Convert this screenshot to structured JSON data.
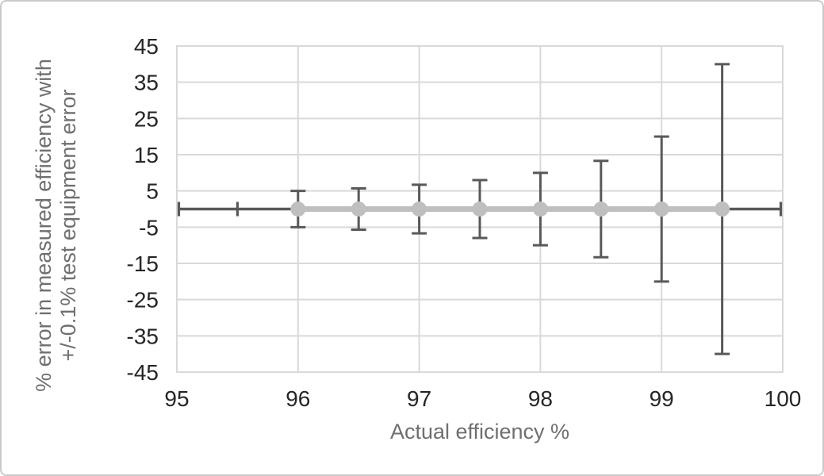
{
  "figure": {
    "background": "#ffffff",
    "border_color": "#c9c9c9"
  },
  "chart_data": {
    "type": "scatter",
    "title": "",
    "xlabel": "Actual efficiency %",
    "ylabel_lines": [
      "% error in measured efficiency with",
      "+/-0.1% test equipment error"
    ],
    "xlim": [
      95,
      100
    ],
    "ylim": [
      -45,
      45
    ],
    "x_ticks": [
      95,
      96,
      97,
      98,
      99,
      100
    ],
    "y_ticks": [
      45,
      35,
      25,
      15,
      5,
      -5,
      -15,
      -25,
      -35,
      -45
    ],
    "grid": true,
    "legend": false,
    "series": [
      {
        "name": "% error in measured efficiency",
        "x": [
          96,
          96.5,
          97,
          97.5,
          98,
          98.5,
          99,
          99.5
        ],
        "y": [
          0,
          0,
          0,
          0,
          0,
          0,
          0,
          0
        ],
        "y_error": [
          5,
          5.7,
          6.7,
          8,
          10,
          13.3,
          20,
          40
        ]
      }
    ],
    "baseline": {
      "y": 0,
      "from": 95,
      "to": 100,
      "cap_positions": [
        95,
        95.5,
        100
      ]
    },
    "colors": {
      "series_line": "#bfbfbf",
      "marker": "#bfbfbf",
      "error_bar": "#595959",
      "baseline": "#595959",
      "gridline": "#d9d9d9",
      "plot_border": "#d9d9d9",
      "tick_label": "#262626",
      "axis_title": "#6f6f6f"
    }
  }
}
